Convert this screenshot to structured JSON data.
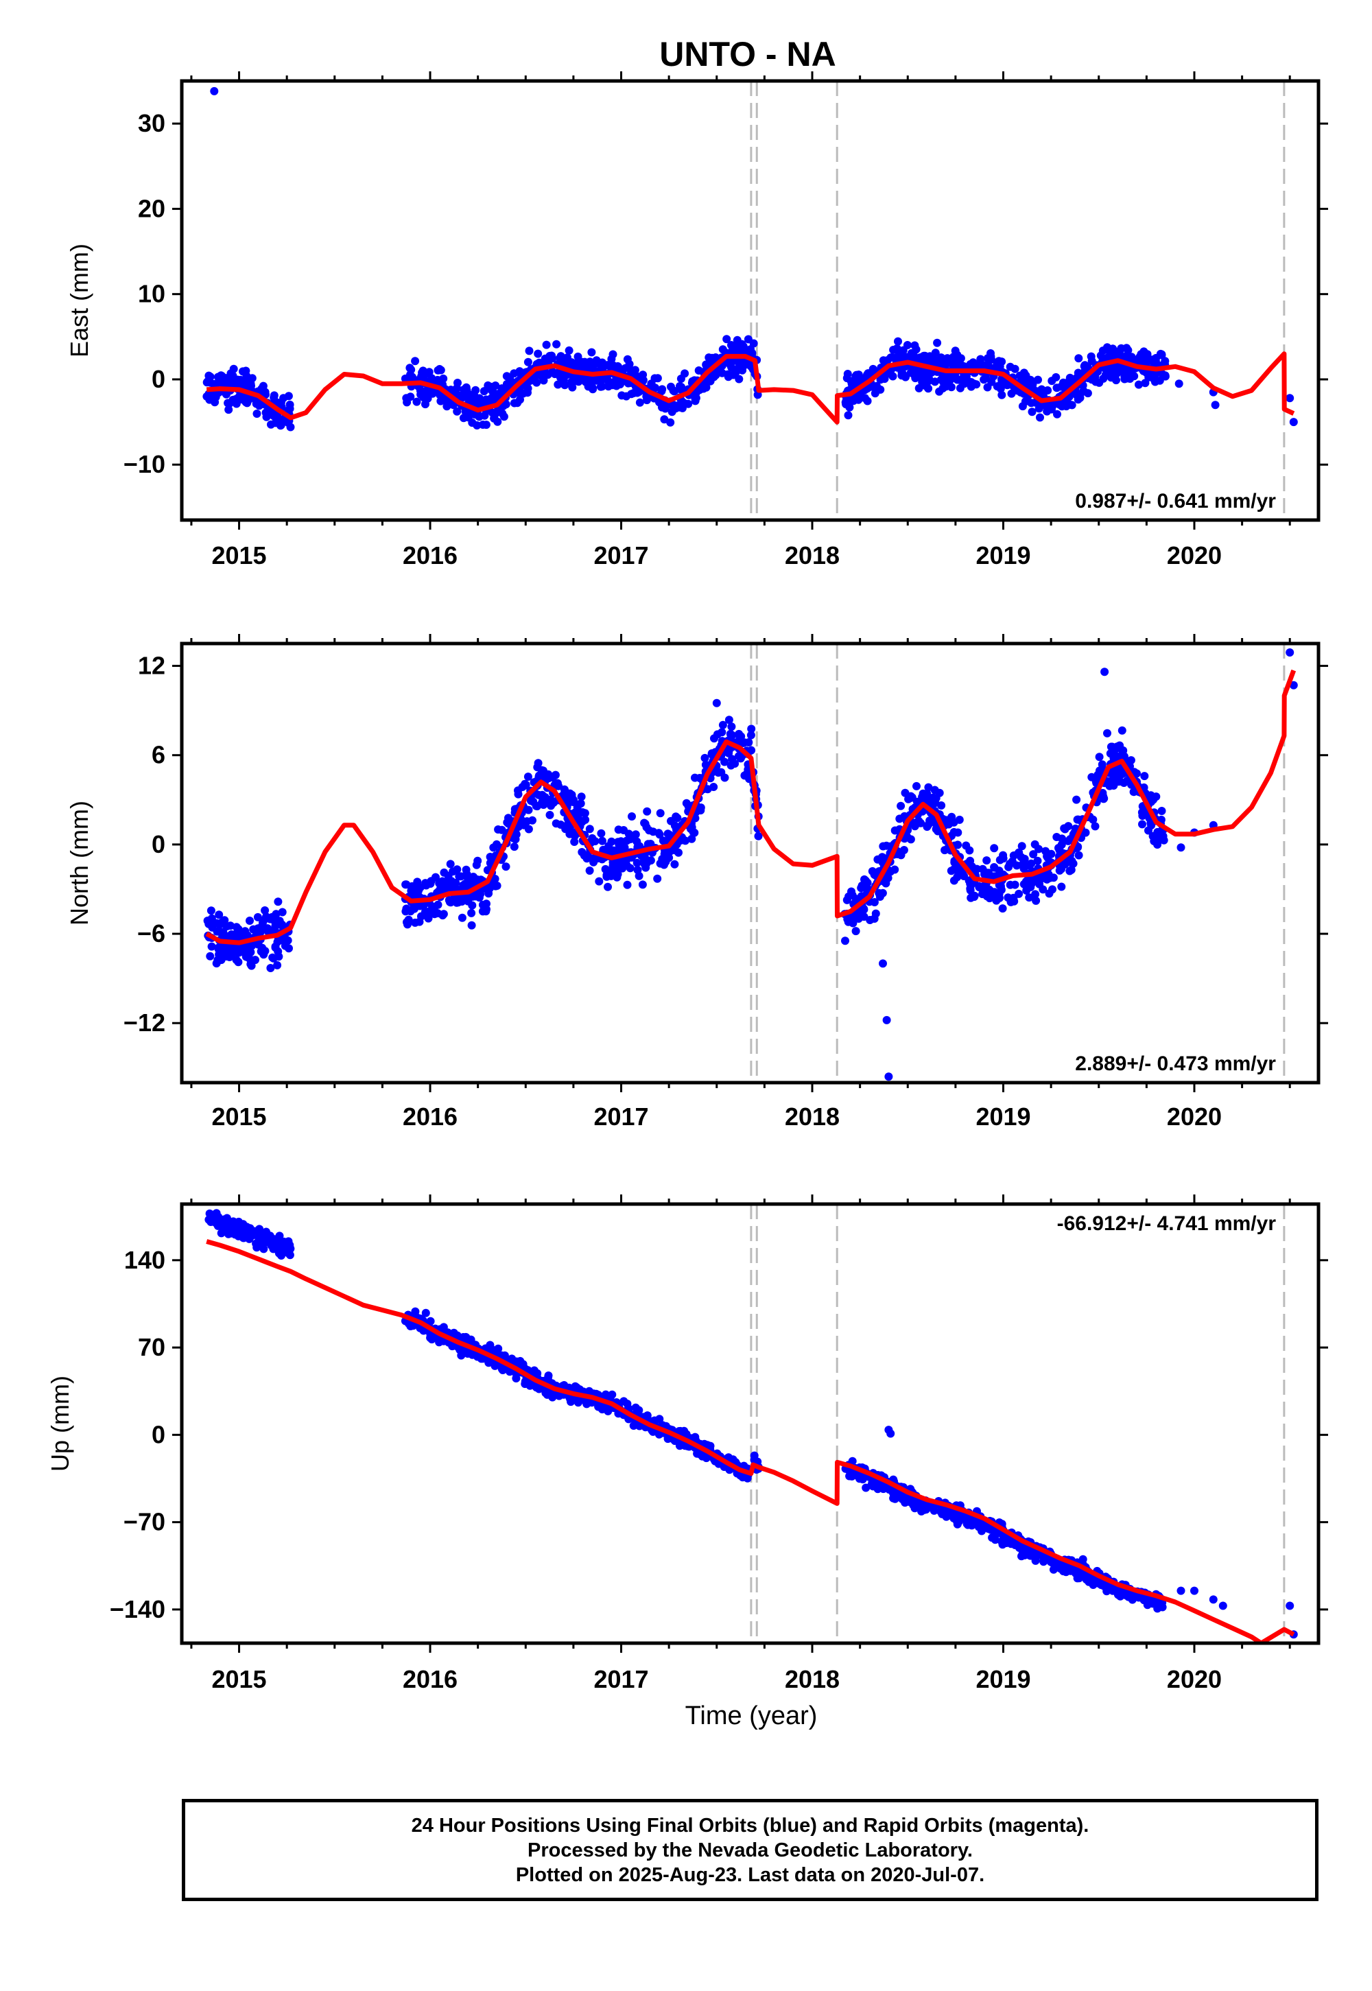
{
  "figure": {
    "title": "UNTO - NA"
  },
  "colors": {
    "final_orbits": "#0000ff",
    "rapid_orbits": "#ff00ff",
    "model": "#ff0000",
    "equipment_change_line": "#bbbbbb"
  },
  "footer": {
    "line1": "24 Hour Positions Using Final Orbits (blue) and Rapid Orbits (magenta).",
    "line2": "Processed by the Nevada Geodetic Laboratory.",
    "line3": "Plotted on 2025-Aug-23. Last data on 2020-Jul-07."
  },
  "chart_data": [
    {
      "type": "scatter",
      "title": "UNTO - NA",
      "ylabel": "East (mm)",
      "xlabel": "",
      "xlim": [
        2014.7,
        2020.65
      ],
      "ylim": [
        -16.5,
        35
      ],
      "x_ticks": [
        "2015",
        "2016",
        "2017",
        "2018",
        "2019",
        "2020"
      ],
      "y_ticks": [
        "30",
        "20",
        "10",
        "0",
        "−10"
      ],
      "y_tick_values": [
        30,
        20,
        10,
        0,
        -10
      ],
      "rate_label": "0.987+/- 0.641 mm/yr",
      "rate_position": "bottom-right",
      "equipment_changes": [
        2017.68,
        2017.71,
        2018.13,
        2020.47
      ],
      "observation_periods": [
        [
          2014.83,
          2015.27
        ],
        [
          2015.87,
          2017.72
        ],
        [
          2018.17,
          2019.85
        ]
      ],
      "sparse_points": [
        [
          2014.87,
          33.8
        ],
        [
          2019.92,
          -0.5
        ],
        [
          2020.1,
          -1.5
        ],
        [
          2020.11,
          -3
        ],
        [
          2020.5,
          -2.2
        ],
        [
          2020.52,
          -5
        ]
      ],
      "model_curve": [
        [
          2014.83,
          -1.2
        ],
        [
          2014.9,
          -1.1
        ],
        [
          2015.0,
          -1.2
        ],
        [
          2015.1,
          -1.9
        ],
        [
          2015.2,
          -3.5
        ],
        [
          2015.27,
          -4.5
        ],
        [
          2015.35,
          -3.9
        ],
        [
          2015.45,
          -1.2
        ],
        [
          2015.55,
          0.6
        ],
        [
          2015.65,
          0.4
        ],
        [
          2015.75,
          -0.5
        ],
        [
          2015.85,
          -0.5
        ],
        [
          2015.95,
          -0.4
        ],
        [
          2016.05,
          -1.0
        ],
        [
          2016.15,
          -2.7
        ],
        [
          2016.25,
          -3.6
        ],
        [
          2016.35,
          -3.0
        ],
        [
          2016.45,
          -0.8
        ],
        [
          2016.55,
          1.2
        ],
        [
          2016.65,
          1.6
        ],
        [
          2016.75,
          0.9
        ],
        [
          2016.85,
          0.6
        ],
        [
          2016.95,
          0.8
        ],
        [
          2017.05,
          0.1
        ],
        [
          2017.15,
          -1.5
        ],
        [
          2017.25,
          -2.5
        ],
        [
          2017.35,
          -1.6
        ],
        [
          2017.45,
          0.8
        ],
        [
          2017.55,
          2.7
        ],
        [
          2017.65,
          2.7
        ],
        [
          2017.7,
          2.2
        ],
        [
          2017.72,
          -1.3
        ],
        [
          2017.8,
          -1.2
        ],
        [
          2017.9,
          -1.3
        ],
        [
          2018.0,
          -1.8
        ],
        [
          2018.13,
          -5.0
        ],
        [
          2018.131,
          -1.9
        ],
        [
          2018.2,
          -1.7
        ],
        [
          2018.3,
          -0.2
        ],
        [
          2018.4,
          1.6
        ],
        [
          2018.5,
          2.0
        ],
        [
          2018.6,
          1.5
        ],
        [
          2018.7,
          1.0
        ],
        [
          2018.8,
          1.0
        ],
        [
          2018.9,
          1.0
        ],
        [
          2019.0,
          0.6
        ],
        [
          2019.1,
          -1.0
        ],
        [
          2019.2,
          -2.5
        ],
        [
          2019.3,
          -2.2
        ],
        [
          2019.4,
          -0.3
        ],
        [
          2019.5,
          1.7
        ],
        [
          2019.6,
          2.2
        ],
        [
          2019.7,
          1.5
        ],
        [
          2019.8,
          1.2
        ],
        [
          2019.9,
          1.5
        ],
        [
          2020.0,
          0.9
        ],
        [
          2020.1,
          -1.0
        ],
        [
          2020.2,
          -2.0
        ],
        [
          2020.3,
          -1.3
        ],
        [
          2020.4,
          1.3
        ],
        [
          2020.47,
          3.0
        ],
        [
          2020.471,
          -3.5
        ],
        [
          2020.52,
          -4.0
        ]
      ]
    },
    {
      "type": "scatter",
      "title": "",
      "ylabel": "North (mm)",
      "xlabel": "",
      "xlim": [
        2014.7,
        2020.65
      ],
      "ylim": [
        -16,
        13.5
      ],
      "x_ticks": [
        "2015",
        "2016",
        "2017",
        "2018",
        "2019",
        "2020"
      ],
      "y_ticks": [
        "12",
        "6",
        "0",
        "−6",
        "−12"
      ],
      "y_tick_values": [
        12,
        6,
        0,
        -6,
        -12
      ],
      "rate_label": "2.889+/- 0.473 mm/yr",
      "rate_position": "bottom-right",
      "equipment_changes": [
        2017.68,
        2017.71,
        2018.13,
        2020.47
      ],
      "observation_periods": [
        [
          2014.83,
          2015.27
        ],
        [
          2015.87,
          2017.72
        ],
        [
          2018.17,
          2019.85
        ]
      ],
      "sparse_points": [
        [
          2017.5,
          9.5
        ],
        [
          2018.37,
          -8
        ],
        [
          2018.39,
          -11.8
        ],
        [
          2018.4,
          -15.6
        ],
        [
          2019.53,
          11.6
        ],
        [
          2019.93,
          -0.2
        ],
        [
          2020.0,
          0.8
        ],
        [
          2020.1,
          1.3
        ],
        [
          2020.5,
          12.9
        ],
        [
          2020.52,
          10.7
        ]
      ],
      "model_curve": [
        [
          2014.83,
          -6.0
        ],
        [
          2014.9,
          -6.5
        ],
        [
          2015.0,
          -6.6
        ],
        [
          2015.1,
          -6.3
        ],
        [
          2015.2,
          -6.1
        ],
        [
          2015.27,
          -5.6
        ],
        [
          2015.35,
          -3.2
        ],
        [
          2015.45,
          -0.5
        ],
        [
          2015.55,
          1.3
        ],
        [
          2015.6,
          1.3
        ],
        [
          2015.7,
          -0.5
        ],
        [
          2015.8,
          -2.9
        ],
        [
          2015.9,
          -3.8
        ],
        [
          2016.0,
          -3.7
        ],
        [
          2016.1,
          -3.3
        ],
        [
          2016.2,
          -3.2
        ],
        [
          2016.3,
          -2.5
        ],
        [
          2016.4,
          0.2
        ],
        [
          2016.5,
          3.2
        ],
        [
          2016.58,
          4.2
        ],
        [
          2016.65,
          3.6
        ],
        [
          2016.75,
          1.5
        ],
        [
          2016.85,
          -0.5
        ],
        [
          2016.95,
          -0.9
        ],
        [
          2017.05,
          -0.6
        ],
        [
          2017.15,
          -0.3
        ],
        [
          2017.25,
          -0.1
        ],
        [
          2017.35,
          1.5
        ],
        [
          2017.45,
          4.7
        ],
        [
          2017.55,
          6.9
        ],
        [
          2017.62,
          6.5
        ],
        [
          2017.68,
          5.8
        ],
        [
          2017.72,
          1.3
        ],
        [
          2017.8,
          -0.3
        ],
        [
          2017.9,
          -1.3
        ],
        [
          2018.0,
          -1.4
        ],
        [
          2018.13,
          -0.8
        ],
        [
          2018.131,
          -4.8
        ],
        [
          2018.2,
          -4.5
        ],
        [
          2018.3,
          -3.5
        ],
        [
          2018.4,
          -1.2
        ],
        [
          2018.5,
          1.6
        ],
        [
          2018.58,
          2.7
        ],
        [
          2018.65,
          2.0
        ],
        [
          2018.75,
          -0.7
        ],
        [
          2018.85,
          -2.3
        ],
        [
          2018.95,
          -2.5
        ],
        [
          2019.05,
          -2.1
        ],
        [
          2019.15,
          -2.0
        ],
        [
          2019.25,
          -1.5
        ],
        [
          2019.35,
          -0.5
        ],
        [
          2019.45,
          2.3
        ],
        [
          2019.55,
          5.2
        ],
        [
          2019.62,
          5.6
        ],
        [
          2019.7,
          4.0
        ],
        [
          2019.8,
          1.5
        ],
        [
          2019.9,
          0.7
        ],
        [
          2020.0,
          0.7
        ],
        [
          2020.1,
          1.0
        ],
        [
          2020.2,
          1.2
        ],
        [
          2020.3,
          2.5
        ],
        [
          2020.4,
          4.8
        ],
        [
          2020.47,
          7.3
        ],
        [
          2020.471,
          10.0
        ],
        [
          2020.52,
          11.7
        ]
      ]
    },
    {
      "type": "scatter",
      "title": "",
      "ylabel": "Up (mm)",
      "xlabel": "Time (year)",
      "xlim": [
        2014.7,
        2020.65
      ],
      "ylim": [
        -167,
        185
      ],
      "x_ticks": [
        "2015",
        "2016",
        "2017",
        "2018",
        "2019",
        "2020"
      ],
      "y_ticks": [
        "140",
        "70",
        "0",
        "−70",
        "−140"
      ],
      "y_tick_values": [
        140,
        70,
        0,
        -70,
        -140
      ],
      "rate_label": "-66.912+/- 4.741 mm/yr",
      "rate_position": "top-right",
      "equipment_changes": [
        2017.68,
        2017.71,
        2018.13,
        2020.47
      ],
      "observation_periods": [
        [
          2014.83,
          2015.27
        ],
        [
          2015.87,
          2017.72
        ],
        [
          2018.17,
          2019.85
        ]
      ],
      "sparse_points": [
        [
          2018.4,
          4
        ],
        [
          2018.41,
          1
        ],
        [
          2019.93,
          -125
        ],
        [
          2020.0,
          -125
        ],
        [
          2020.1,
          -132
        ],
        [
          2020.15,
          -137
        ],
        [
          2020.5,
          -137
        ],
        [
          2020.52,
          -160
        ]
      ],
      "model_curve": [
        [
          2014.83,
          155
        ],
        [
          2014.9,
          152
        ],
        [
          2015.0,
          147
        ],
        [
          2015.1,
          141
        ],
        [
          2015.2,
          135
        ],
        [
          2015.27,
          131
        ],
        [
          2015.35,
          125
        ],
        [
          2015.45,
          118
        ],
        [
          2015.55,
          111
        ],
        [
          2015.65,
          104
        ],
        [
          2015.75,
          100
        ],
        [
          2015.85,
          96
        ],
        [
          2015.95,
          90
        ],
        [
          2016.05,
          81
        ],
        [
          2016.15,
          74
        ],
        [
          2016.25,
          68
        ],
        [
          2016.35,
          61
        ],
        [
          2016.45,
          53
        ],
        [
          2016.55,
          44
        ],
        [
          2016.65,
          37
        ],
        [
          2016.75,
          33
        ],
        [
          2016.85,
          30
        ],
        [
          2016.95,
          25
        ],
        [
          2017.05,
          16
        ],
        [
          2017.15,
          8
        ],
        [
          2017.25,
          2
        ],
        [
          2017.35,
          -5
        ],
        [
          2017.45,
          -13
        ],
        [
          2017.55,
          -22
        ],
        [
          2017.62,
          -28
        ],
        [
          2017.68,
          -31
        ],
        [
          2017.69,
          -24
        ],
        [
          2017.72,
          -26
        ],
        [
          2017.8,
          -30
        ],
        [
          2017.9,
          -37
        ],
        [
          2018.0,
          -45
        ],
        [
          2018.13,
          -55
        ],
        [
          2018.131,
          -22
        ],
        [
          2018.2,
          -25
        ],
        [
          2018.3,
          -31
        ],
        [
          2018.4,
          -38
        ],
        [
          2018.5,
          -46
        ],
        [
          2018.6,
          -52
        ],
        [
          2018.7,
          -56
        ],
        [
          2018.8,
          -61
        ],
        [
          2018.9,
          -67
        ],
        [
          2019.0,
          -76
        ],
        [
          2019.1,
          -85
        ],
        [
          2019.2,
          -92
        ],
        [
          2019.3,
          -99
        ],
        [
          2019.4,
          -105
        ],
        [
          2019.5,
          -113
        ],
        [
          2019.6,
          -120
        ],
        [
          2019.7,
          -125
        ],
        [
          2019.8,
          -129
        ],
        [
          2019.9,
          -134
        ],
        [
          2020.0,
          -141
        ],
        [
          2020.1,
          -148
        ],
        [
          2020.2,
          -155
        ],
        [
          2020.3,
          -162
        ],
        [
          2020.35,
          -167
        ],
        [
          2020.47,
          -156
        ],
        [
          2020.52,
          -160
        ]
      ]
    }
  ]
}
